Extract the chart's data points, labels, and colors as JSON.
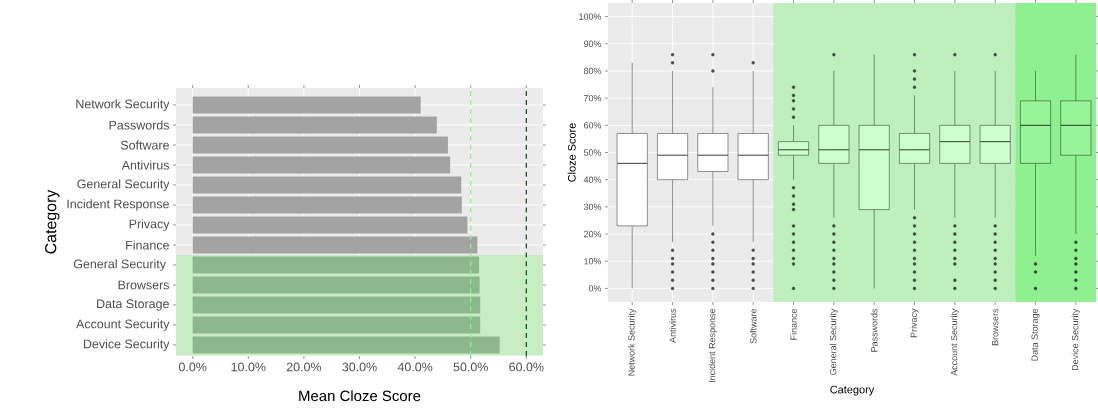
{
  "chart_data": [
    {
      "type": "bar",
      "orientation": "horizontal",
      "xlabel": "Mean Cloze Score",
      "ylabel": "Category",
      "categories": [
        "Network Security",
        "Passwords",
        "Software",
        "Antivirus",
        "General Security",
        "Incident Response",
        "Privacy",
        "Finance",
        "General Security ",
        "Browsers",
        "Data Storage",
        "Account Security",
        "Device Security"
      ],
      "values": [
        41.0,
        43.9,
        45.9,
        46.3,
        48.3,
        48.4,
        49.4,
        51.2,
        51.5,
        51.6,
        51.7,
        51.7,
        55.2
      ],
      "colors": [
        "#a3a3a3",
        "#a3a3a3",
        "#a3a3a3",
        "#a3a3a3",
        "#a3a3a3",
        "#a3a3a3",
        "#a3a3a3",
        "#a3a3a3",
        "#8db78d",
        "#8db78d",
        "#8db78d",
        "#8db78d",
        "#8db78d"
      ],
      "xlim": [
        -3,
        63
      ],
      "xticks": [
        {
          "value": 0,
          "label": "0.0%"
        },
        {
          "value": 10,
          "label": "10.0%"
        },
        {
          "value": 20,
          "label": "20.0%"
        },
        {
          "value": 30,
          "label": "30.0%"
        },
        {
          "value": 40,
          "label": "40.0%"
        },
        {
          "value": 50,
          "label": "50.0%"
        },
        {
          "value": 60,
          "label": "60.0%"
        }
      ],
      "grid": true,
      "ref_lines": [
        {
          "axis": "x",
          "value": 50,
          "color": "#90ee90",
          "line_style": "dashed"
        },
        {
          "axis": "x",
          "value": 60,
          "color": "#006400",
          "line_style": "dashed"
        }
      ],
      "bands": [
        {
          "axis": "y",
          "from": "General Security ",
          "to": "Device Security",
          "color": "#c8ecc4"
        }
      ]
    },
    {
      "type": "box",
      "xlabel": "Category",
      "ylabel": "Cloze Score",
      "categories": [
        "Network Security",
        "Antivirus",
        "Incident Response",
        "Software",
        "Finance",
        "General Security",
        "Passwords",
        "Privacy",
        "Account Security",
        "Browsers",
        "Data Storage",
        "Device Security"
      ],
      "boxes": [
        {
          "low": 0,
          "q1": 23,
          "median": 46,
          "q3": 57,
          "high": 83
        },
        {
          "low": 17,
          "q1": 40,
          "median": 49,
          "q3": 57,
          "high": 80,
          "outliers": [
            86,
            83,
            14,
            11,
            9,
            6,
            3,
            0
          ]
        },
        {
          "low": 23,
          "q1": 43,
          "median": 49,
          "q3": 57,
          "high": 74,
          "outliers": [
            86,
            80,
            20,
            17,
            14,
            11,
            9,
            6,
            3,
            0
          ]
        },
        {
          "low": 17,
          "q1": 40,
          "median": 49,
          "q3": 57,
          "high": 80,
          "outliers": [
            83,
            14,
            11,
            9,
            6,
            3,
            0
          ]
        },
        {
          "low": 40,
          "q1": 49,
          "median": 51,
          "q3": 54,
          "high": 60,
          "outliers": [
            74,
            71,
            69,
            66,
            63,
            37,
            34,
            31,
            29,
            23,
            20,
            17,
            14,
            11,
            9,
            0
          ]
        },
        {
          "low": 26,
          "q1": 46,
          "median": 51,
          "q3": 60,
          "high": 80,
          "outliers": [
            86,
            23,
            20,
            17,
            14,
            11,
            9,
            6,
            3,
            0
          ]
        },
        {
          "low": 0,
          "q1": 29,
          "median": 51,
          "q3": 60,
          "high": 86
        },
        {
          "low": 29,
          "q1": 46,
          "median": 51,
          "q3": 57,
          "high": 71,
          "outliers": [
            86,
            80,
            77,
            74,
            26,
            23,
            20,
            17,
            14,
            11,
            9,
            6,
            3,
            0
          ]
        },
        {
          "low": 26,
          "q1": 46,
          "median": 54,
          "q3": 60,
          "high": 80,
          "outliers": [
            86,
            23,
            20,
            17,
            14,
            11,
            9,
            3,
            0
          ]
        },
        {
          "low": 26,
          "q1": 46,
          "median": 54,
          "q3": 60,
          "high": 80,
          "outliers": [
            86,
            23,
            20,
            17,
            14,
            11,
            9,
            6,
            3,
            0
          ]
        },
        {
          "low": 12,
          "q1": 46,
          "median": 60,
          "q3": 69,
          "high": 80,
          "outliers": [
            9,
            6,
            0
          ]
        },
        {
          "low": 20,
          "q1": 49,
          "median": 60,
          "q3": 69,
          "high": 86,
          "outliers": [
            17,
            14,
            11,
            9,
            6,
            3,
            0
          ]
        }
      ],
      "colors": [
        "#ffffff",
        "#ffffff",
        "#ffffff",
        "#ffffff",
        "#ccffcc",
        "#ccffcc",
        "#ccffcc",
        "#ccffcc",
        "#ccffcc",
        "#ccffcc",
        "#99f599",
        "#99f599"
      ],
      "ylim": [
        -5,
        105
      ],
      "yticks": [
        {
          "value": 0,
          "label": "0%"
        },
        {
          "value": 10,
          "label": "10%"
        },
        {
          "value": 20,
          "label": "20%"
        },
        {
          "value": 30,
          "label": "30%"
        },
        {
          "value": 40,
          "label": "40%"
        },
        {
          "value": 50,
          "label": "50%"
        },
        {
          "value": 60,
          "label": "60%"
        },
        {
          "value": 70,
          "label": "70%"
        },
        {
          "value": 80,
          "label": "80%"
        },
        {
          "value": 90,
          "label": "90%"
        },
        {
          "value": 100,
          "label": "100%"
        }
      ],
      "grid": true,
      "bands": [
        {
          "axis": "x",
          "from": "Finance",
          "to": "Browsers",
          "color": "#bdf0bd"
        },
        {
          "axis": "x",
          "from": "Data Storage",
          "to": "Device Security",
          "color": "#8ef08e"
        }
      ]
    }
  ]
}
